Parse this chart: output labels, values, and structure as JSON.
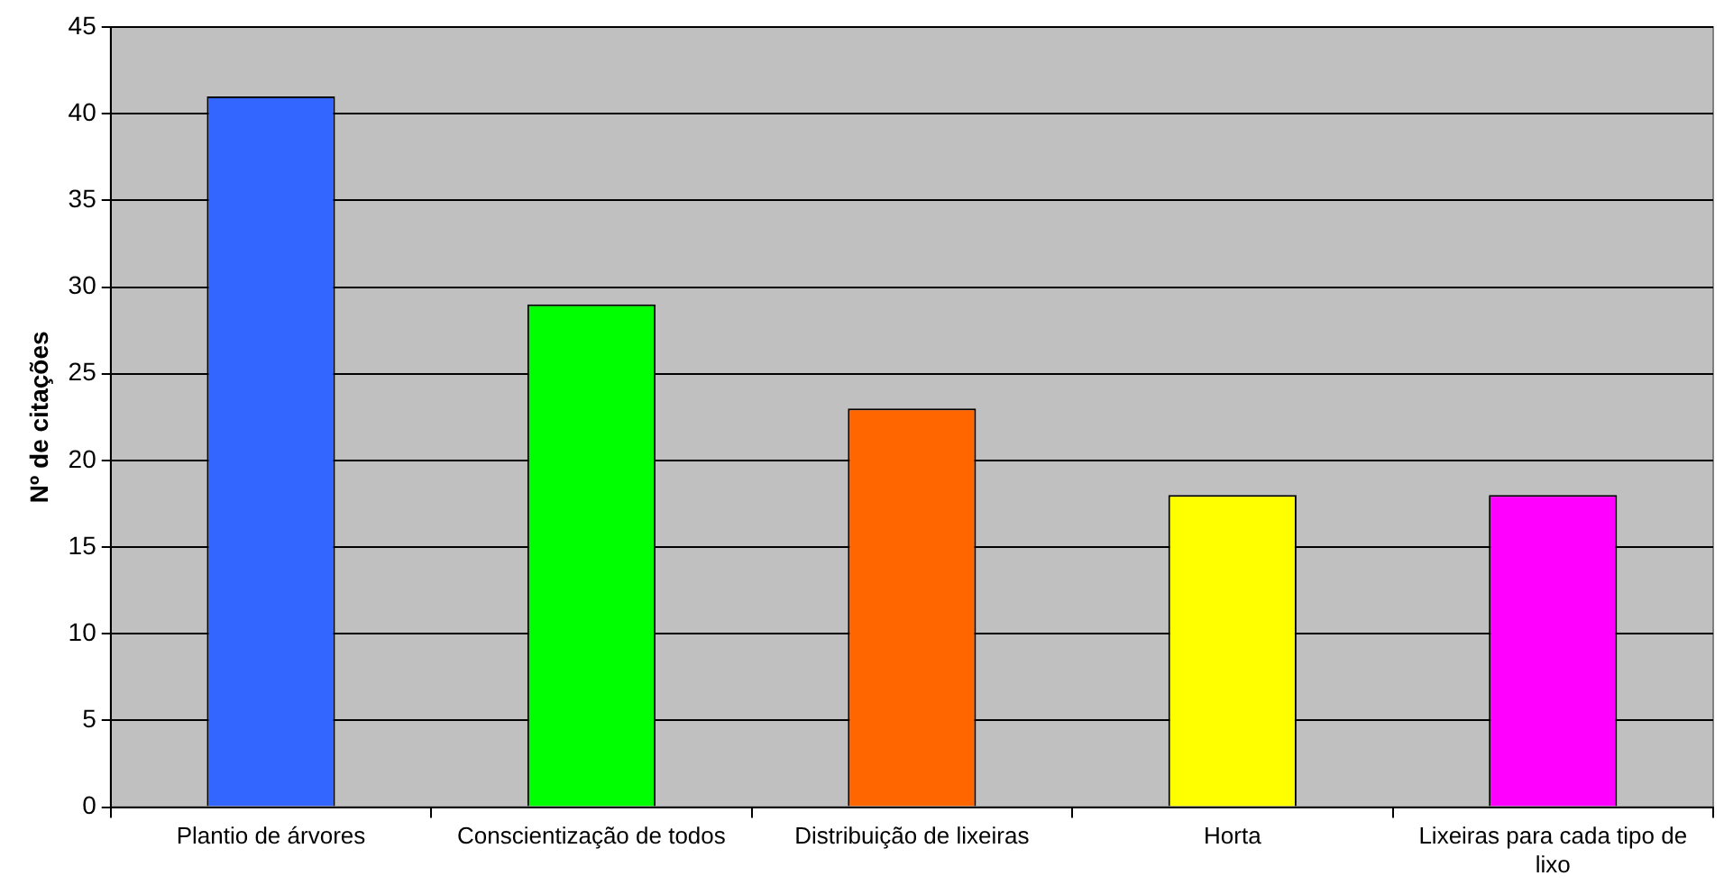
{
  "chart_data": {
    "type": "bar",
    "ylabel": "Nº de citações",
    "categories": [
      "Plantio de árvores",
      "Conscientização de todos",
      "Distribuição de lixeiras",
      "Horta",
      "Lixeiras para cada tipo de lixo"
    ],
    "values": [
      41,
      29,
      23,
      18,
      18
    ],
    "colors": [
      "#3366ff",
      "#00ff00",
      "#ff6600",
      "#ffff00",
      "#ff00ff"
    ],
    "ylim": [
      0,
      45
    ],
    "yticks": [
      0,
      5,
      10,
      15,
      20,
      25,
      30,
      35,
      40,
      45
    ],
    "grid": "y",
    "legend": false
  }
}
